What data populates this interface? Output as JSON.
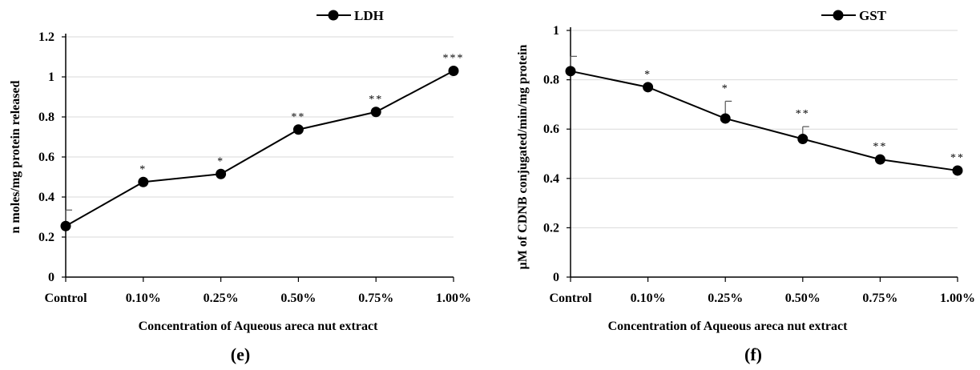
{
  "chart_data": [
    {
      "type": "line",
      "panel_label": "(e)",
      "categories": [
        "Control",
        "0.10%",
        "0.25%",
        "0.50%",
        "0.75%",
        "1.00%"
      ],
      "series": [
        {
          "name": "LDH",
          "values": [
            0.255,
            0.475,
            0.515,
            0.737,
            0.825,
            1.03
          ],
          "error": [
            0.08,
            0,
            0,
            0,
            0,
            0
          ],
          "significance": [
            "",
            "*",
            "*",
            "**",
            "**",
            "***"
          ]
        }
      ],
      "xlabel": "Concentration of Aqueous areca nut extract",
      "ylabel": "n moles/mg protein released",
      "ylim": [
        0,
        1.2
      ],
      "yticks": [
        "0",
        "0.2",
        "0.4",
        "0.6",
        "0.8",
        "1",
        "1.2"
      ],
      "grid": true,
      "legend": "top"
    },
    {
      "type": "line",
      "panel_label": "(f)",
      "categories": [
        "Control",
        "0.10%",
        "0.25%",
        "0.50%",
        "0.75%",
        "1.00%"
      ],
      "series": [
        {
          "name": "GST",
          "values": [
            0.835,
            0.77,
            0.643,
            0.56,
            0.477,
            0.432
          ],
          "error": [
            0.06,
            0,
            0.07,
            0.05,
            0,
            0
          ],
          "significance": [
            "",
            "*",
            "*",
            "**",
            "**",
            "**"
          ]
        }
      ],
      "xlabel": "Concentration of Aqueous areca nut extract",
      "ylabel": "µM of CDNB conjugated/min/mg protein",
      "ylim": [
        0,
        1
      ],
      "yticks": [
        "0",
        "0.2",
        "0.4",
        "0.6",
        "0.8",
        "1"
      ],
      "grid": true,
      "legend": "top"
    }
  ]
}
